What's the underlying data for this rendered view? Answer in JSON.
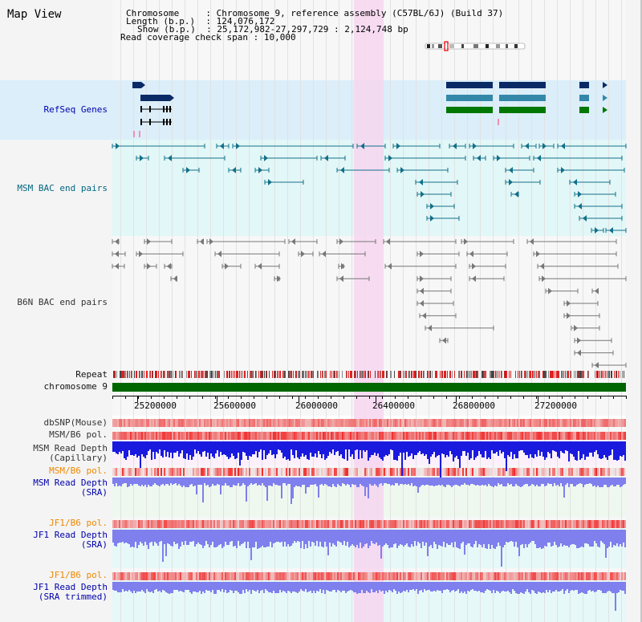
{
  "title": "Map View",
  "info": {
    "chromosome_key": "Chromosome",
    "chromosome_value": "Chromosome 9, reference assembly (C57BL/6J) (Build 37)",
    "length_key": "Length (b.p.)",
    "length_value": "124,076,172",
    "show_key": "Show (b.p.)",
    "show_value": "25,172,982-27,297,729 : 2,124,748 bp",
    "span_key": "Read coverage check span",
    "span_value": "10,000"
  },
  "tracks": {
    "refseq": "RefSeq Genes",
    "msm_bac": "MSM BAC end pairs",
    "b6n_bac": "B6N BAC end pairs",
    "repeat": "Repeat",
    "chromosome": "chromosome 9",
    "dbsnp": "dbSNP(Mouse)",
    "msm_b6_pol_1": "MSM/B6 pol.",
    "msm_depth_cap_1": "MSM Read Depth",
    "msm_depth_cap_2": "(Capillary)",
    "msm_b6_pol_2": "MSM/B6 pol.",
    "msm_depth_sra_1": "MSM Read Depth",
    "msm_depth_sra_2": "(SRA)",
    "jf1_b6_pol_1": "JF1/B6 pol.",
    "jf1_depth_sra_1": "JF1 Read Depth",
    "jf1_depth_sra_2": "(SRA)",
    "jf1_b6_pol_2": "JF1/B6 pol.",
    "jf1_depth_trim_1": "JF1 Read Depth",
    "jf1_depth_trim_2": "(SRA trimmed)"
  },
  "axis": {
    "ticks": [
      "25200000",
      "25600000",
      "26000000",
      "26400000",
      "26800000",
      "27200000"
    ]
  },
  "colors": {
    "refseq_band": "#dbeef9",
    "msm_band": "#e2f7f7",
    "highlight": "#f6d6f0",
    "chromosome_bar": "#006600",
    "repeat": "#dd2222",
    "depth_capillary": "#1a1adf",
    "depth_sra": "#7f7fee"
  }
}
